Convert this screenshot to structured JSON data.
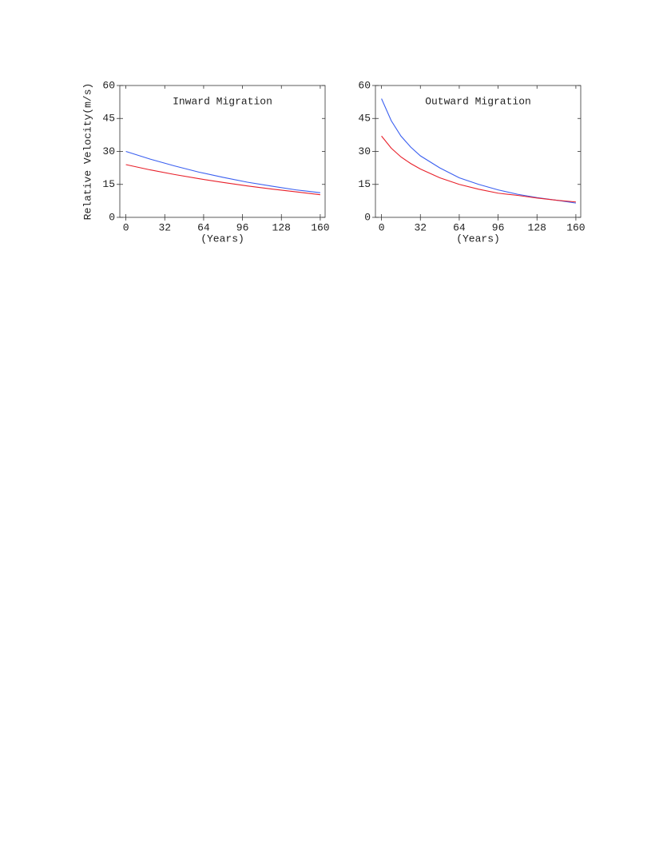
{
  "chart_data": [
    {
      "type": "line",
      "title": "Inward Migration",
      "x_label": "(Years)",
      "y_label": "Relative Velocity(m/s)",
      "x": [
        0,
        20,
        40,
        60,
        80,
        100,
        120,
        140,
        160
      ],
      "series": [
        {
          "color": "#3a5ff0",
          "values": [
            30,
            26.5,
            23.4,
            20.6,
            18.2,
            16.0,
            14.2,
            12.5,
            11.2
          ]
        },
        {
          "color": "#e8202a",
          "values": [
            24,
            21.6,
            19.5,
            17.6,
            15.9,
            14.3,
            12.9,
            11.6,
            10.3
          ]
        }
      ],
      "xlim": [
        -5,
        164
      ],
      "ylim": [
        0,
        60
      ],
      "xticks": [
        0,
        32,
        64,
        96,
        128,
        160
      ],
      "yticks": [
        0,
        15,
        30,
        45,
        60
      ]
    },
    {
      "type": "line",
      "title": "Outward Migration",
      "x_label": "(Years)",
      "x": [
        0,
        8,
        16,
        24,
        32,
        48,
        64,
        80,
        96,
        112,
        128,
        144,
        160
      ],
      "series": [
        {
          "color": "#3a5ff0",
          "values": [
            54,
            44,
            37,
            32,
            28,
            22.5,
            18,
            15,
            12.5,
            10.5,
            9,
            7.8,
            6.5
          ]
        },
        {
          "color": "#e8202a",
          "values": [
            37,
            31.5,
            27.5,
            24.5,
            22,
            18,
            15,
            12.8,
            11,
            10,
            8.8,
            7.8,
            7
          ]
        }
      ],
      "xlim": [
        -5,
        164
      ],
      "ylim": [
        0,
        60
      ],
      "xticks": [
        0,
        32,
        64,
        96,
        128,
        160
      ],
      "yticks": [
        0,
        15,
        30,
        45,
        60
      ]
    }
  ]
}
